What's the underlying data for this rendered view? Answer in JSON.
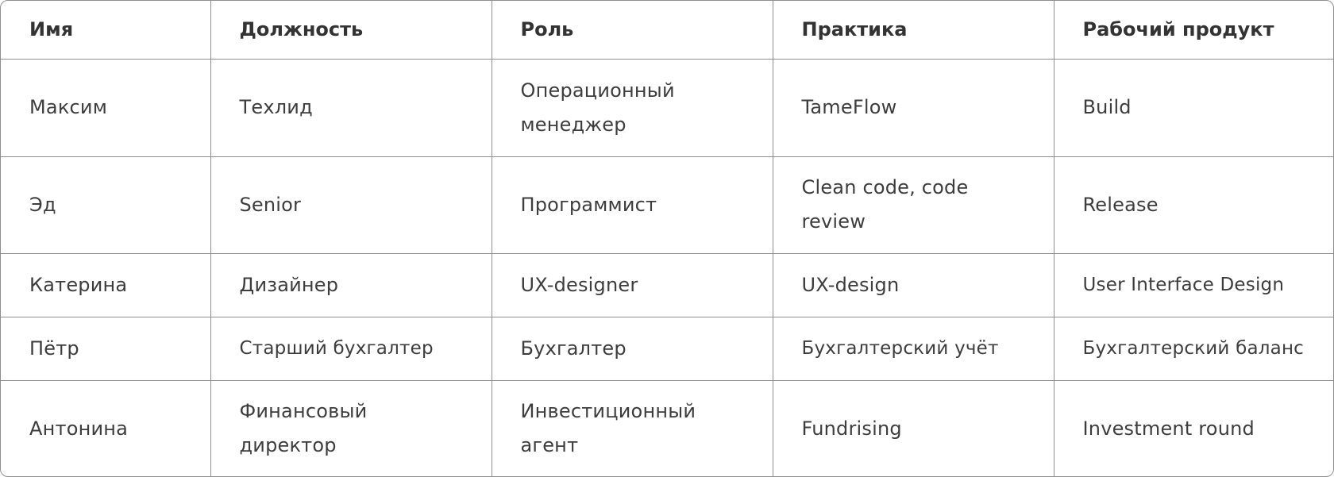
{
  "table": {
    "headers": [
      "Имя",
      "Должность",
      "Роль",
      "Практика",
      "Рабочий продукт"
    ],
    "rows": [
      [
        "Максим",
        "Техлид",
        "Операционный менеджер",
        "TameFlow",
        "Build"
      ],
      [
        "Эд",
        "Senior",
        "Программист",
        "Clean code, code review",
        "Release"
      ],
      [
        "Катерина",
        "Дизайнер",
        "UX-designer",
        "UX-design",
        "User Interface Design"
      ],
      [
        "Пётр",
        "Старший бухгалтер",
        "Бухгалтер",
        "Бухгалтерский учёт",
        "Бухгалтерский баланс"
      ],
      [
        "Антонина",
        "Финансовый директор",
        "Инвестиционный агент",
        "Fundrising",
        "Investment round"
      ]
    ]
  }
}
